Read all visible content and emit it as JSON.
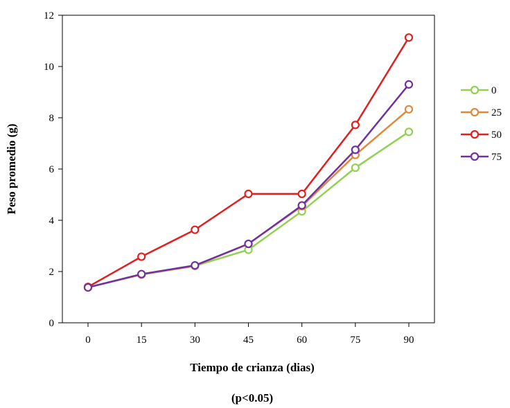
{
  "chart_data": {
    "type": "line",
    "xlabel": "Tiempo de crianza (dias)",
    "ylabel": "Peso promedio (g)",
    "footnote": "(p<0.05)",
    "x": [
      0,
      15,
      30,
      45,
      60,
      75,
      90
    ],
    "ylim": [
      0,
      12
    ],
    "yticks": [
      0,
      2,
      4,
      6,
      8,
      10,
      12
    ],
    "grid": false,
    "legend_position": "right",
    "series": [
      {
        "name": "0",
        "color": "#92d050",
        "values": [
          1.38,
          1.88,
          2.22,
          2.85,
          4.35,
          6.05,
          7.45
        ]
      },
      {
        "name": "25",
        "color": "#e0883a",
        "values": [
          1.38,
          1.88,
          2.22,
          3.08,
          4.55,
          6.55,
          8.33
        ]
      },
      {
        "name": "50",
        "color": "#e02020",
        "values": [
          1.4,
          2.58,
          3.63,
          5.03,
          5.03,
          7.72,
          11.13
        ]
      },
      {
        "name": "75",
        "color": "#7030a0",
        "values": [
          1.38,
          1.9,
          2.24,
          3.08,
          4.58,
          6.75,
          9.3
        ]
      }
    ]
  }
}
